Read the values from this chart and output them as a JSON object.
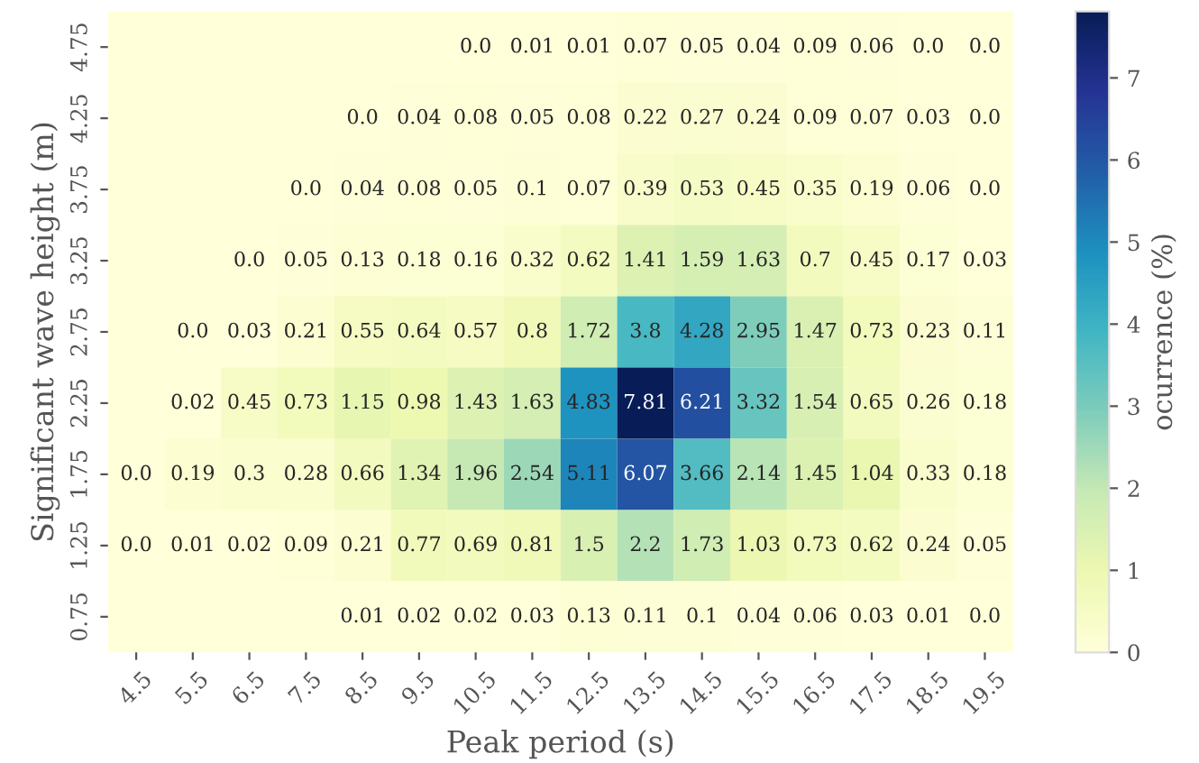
{
  "chart_data": {
    "type": "heatmap",
    "xlabel": "Peak period (s)",
    "ylabel": "Significant wave height (m)",
    "clabel": "ocurrence (%)",
    "categories": [
      "4.5",
      "5.5",
      "6.5",
      "7.5",
      "8.5",
      "9.5",
      "10.5",
      "11.5",
      "12.5",
      "13.5",
      "14.5",
      "15.5",
      "16.5",
      "17.5",
      "18.5",
      "19.5"
    ],
    "y_categories": [
      "4.75",
      "4.25",
      "3.75",
      "3.25",
      "2.75",
      "2.25",
      "1.75",
      "1.25",
      "0.75"
    ],
    "cells": [
      [
        null,
        null,
        null,
        null,
        null,
        null,
        0.0,
        0.01,
        0.01,
        0.07,
        0.05,
        0.04,
        0.09,
        0.06,
        0.0,
        0.0
      ],
      [
        null,
        null,
        null,
        null,
        0.0,
        0.04,
        0.08,
        0.05,
        0.08,
        0.22,
        0.27,
        0.24,
        0.09,
        0.07,
        0.03,
        0.0
      ],
      [
        null,
        null,
        null,
        0.0,
        0.04,
        0.08,
        0.05,
        0.1,
        0.07,
        0.39,
        0.53,
        0.45,
        0.35,
        0.19,
        0.06,
        0.0
      ],
      [
        null,
        null,
        0.0,
        0.05,
        0.13,
        0.18,
        0.16,
        0.32,
        0.62,
        1.41,
        1.59,
        1.63,
        0.7,
        0.45,
        0.17,
        0.03
      ],
      [
        null,
        0.0,
        0.03,
        0.21,
        0.55,
        0.64,
        0.57,
        0.8,
        1.72,
        3.8,
        4.28,
        2.95,
        1.47,
        0.73,
        0.23,
        0.11
      ],
      [
        null,
        0.02,
        0.45,
        0.73,
        1.15,
        0.98,
        1.43,
        1.63,
        4.83,
        7.81,
        6.21,
        3.32,
        1.54,
        0.65,
        0.26,
        0.18
      ],
      [
        0.0,
        0.19,
        0.3,
        0.28,
        0.66,
        1.34,
        1.96,
        2.54,
        5.11,
        6.07,
        3.66,
        2.14,
        1.45,
        1.04,
        0.33,
        0.18
      ],
      [
        0.0,
        0.01,
        0.02,
        0.09,
        0.21,
        0.77,
        0.69,
        0.81,
        1.5,
        2.2,
        1.73,
        1.03,
        0.73,
        0.62,
        0.24,
        0.05
      ],
      [
        null,
        null,
        null,
        null,
        0.01,
        0.02,
        0.02,
        0.03,
        0.13,
        0.11,
        0.1,
        0.04,
        0.06,
        0.03,
        0.01,
        0.0
      ]
    ],
    "cell_labels": [
      [
        null,
        null,
        null,
        null,
        null,
        null,
        "0.0",
        "0.01",
        "0.01",
        "0.07",
        "0.05",
        "0.04",
        "0.09",
        "0.06",
        "0.0",
        "0.0"
      ],
      [
        null,
        null,
        null,
        null,
        "0.0",
        "0.04",
        "0.08",
        "0.05",
        "0.08",
        "0.22",
        "0.27",
        "0.24",
        "0.09",
        "0.07",
        "0.03",
        "0.0"
      ],
      [
        null,
        null,
        null,
        "0.0",
        "0.04",
        "0.08",
        "0.05",
        "0.1",
        "0.07",
        "0.39",
        "0.53",
        "0.45",
        "0.35",
        "0.19",
        "0.06",
        "0.0"
      ],
      [
        null,
        null,
        "0.0",
        "0.05",
        "0.13",
        "0.18",
        "0.16",
        "0.32",
        "0.62",
        "1.41",
        "1.59",
        "1.63",
        "0.7",
        "0.45",
        "0.17",
        "0.03"
      ],
      [
        null,
        "0.0",
        "0.03",
        "0.21",
        "0.55",
        "0.64",
        "0.57",
        "0.8",
        "1.72",
        "3.8",
        "4.28",
        "2.95",
        "1.47",
        "0.73",
        "0.23",
        "0.11"
      ],
      [
        null,
        "0.02",
        "0.45",
        "0.73",
        "1.15",
        "0.98",
        "1.43",
        "1.63",
        "4.83",
        "7.81",
        "6.21",
        "3.32",
        "1.54",
        "0.65",
        "0.26",
        "0.18"
      ],
      [
        "0.0",
        "0.19",
        "0.3",
        "0.28",
        "0.66",
        "1.34",
        "1.96",
        "2.54",
        "5.11",
        "6.07",
        "3.66",
        "2.14",
        "1.45",
        "1.04",
        "0.33",
        "0.18"
      ],
      [
        "0.0",
        "0.01",
        "0.02",
        "0.09",
        "0.21",
        "0.77",
        "0.69",
        "0.81",
        "1.5",
        "2.2",
        "1.73",
        "1.03",
        "0.73",
        "0.62",
        "0.24",
        "0.05"
      ],
      [
        null,
        null,
        null,
        null,
        "0.01",
        "0.02",
        "0.02",
        "0.03",
        "0.13",
        "0.11",
        "0.1",
        "0.04",
        "0.06",
        "0.03",
        "0.01",
        "0.0"
      ]
    ],
    "clim": [
      0,
      7.81
    ],
    "cticks": [
      0,
      1,
      2,
      3,
      4,
      5,
      6,
      7
    ]
  }
}
